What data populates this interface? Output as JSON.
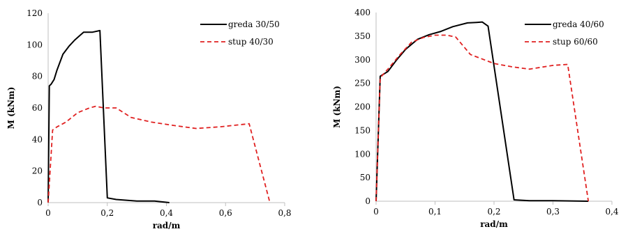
{
  "chart_data": [
    {
      "type": "line",
      "title": "",
      "xlabel": "rad/m",
      "ylabel": "M (kNm)",
      "xlim": [
        0,
        0.8
      ],
      "ylim": [
        0,
        120
      ],
      "xticks": [
        0,
        0.2,
        0.4,
        0.6,
        0.8
      ],
      "xtick_labels": [
        "0",
        "0,2",
        "0,4",
        "0,6",
        "0,8"
      ],
      "yticks": [
        0,
        20,
        40,
        60,
        80,
        100,
        120
      ],
      "ytick_labels": [
        "0",
        "20",
        "40",
        "60",
        "80",
        "100",
        "120"
      ],
      "grid": false,
      "legend": "top-right",
      "series": [
        {
          "name": "greda 30/50",
          "color": "#000000",
          "dash": "solid",
          "x": [
            0,
            0.004,
            0.01,
            0.02,
            0.03,
            0.05,
            0.07,
            0.09,
            0.12,
            0.15,
            0.175,
            0.2,
            0.23,
            0.3,
            0.36,
            0.41
          ],
          "y": [
            0,
            74,
            75,
            78,
            84,
            94,
            99,
            103,
            108,
            108,
            109,
            3,
            2,
            1,
            1,
            0
          ]
        },
        {
          "name": "stup 40/30",
          "color": "#e02020",
          "dash": "dashed",
          "x": [
            0,
            0.015,
            0.03,
            0.06,
            0.1,
            0.14,
            0.16,
            0.19,
            0.23,
            0.28,
            0.35,
            0.42,
            0.5,
            0.58,
            0.68,
            0.75
          ],
          "y": [
            0,
            46,
            48,
            51,
            57,
            60,
            61,
            60,
            60,
            54,
            51,
            49,
            47,
            48,
            50,
            0
          ]
        }
      ]
    },
    {
      "type": "line",
      "title": "",
      "xlabel": "rad/m",
      "ylabel": "M (kNm)",
      "xlim": [
        0,
        0.4
      ],
      "ylim": [
        0,
        400
      ],
      "xticks": [
        0,
        0.1,
        0.2,
        0.3,
        0.4
      ],
      "xtick_labels": [
        "0",
        "0,1",
        "0,2",
        "0,3",
        "0,4"
      ],
      "yticks": [
        0,
        50,
        100,
        150,
        200,
        250,
        300,
        350,
        400
      ],
      "ytick_labels": [
        "0",
        "50",
        "100",
        "150",
        "200",
        "250",
        "300",
        "350",
        "400"
      ],
      "grid": false,
      "legend": "top-right",
      "series": [
        {
          "name": "greda 40/60",
          "color": "#000000",
          "dash": "solid",
          "x": [
            0,
            0.007,
            0.02,
            0.035,
            0.05,
            0.07,
            0.09,
            0.11,
            0.13,
            0.155,
            0.17,
            0.18,
            0.19,
            0.234,
            0.26,
            0.3,
            0.36
          ],
          "y": [
            0,
            265,
            275,
            300,
            322,
            343,
            353,
            360,
            370,
            378,
            379,
            380,
            371,
            3,
            1,
            1,
            0
          ]
        },
        {
          "name": "stup 60/60",
          "color": "#e02020",
          "dash": "dashed",
          "x": [
            0,
            0.007,
            0.02,
            0.04,
            0.06,
            0.08,
            0.1,
            0.12,
            0.135,
            0.16,
            0.2,
            0.23,
            0.26,
            0.3,
            0.325,
            0.36
          ],
          "y": [
            0,
            262,
            280,
            310,
            337,
            347,
            352,
            352,
            348,
            311,
            292,
            285,
            280,
            288,
            290,
            0
          ]
        }
      ]
    }
  ]
}
